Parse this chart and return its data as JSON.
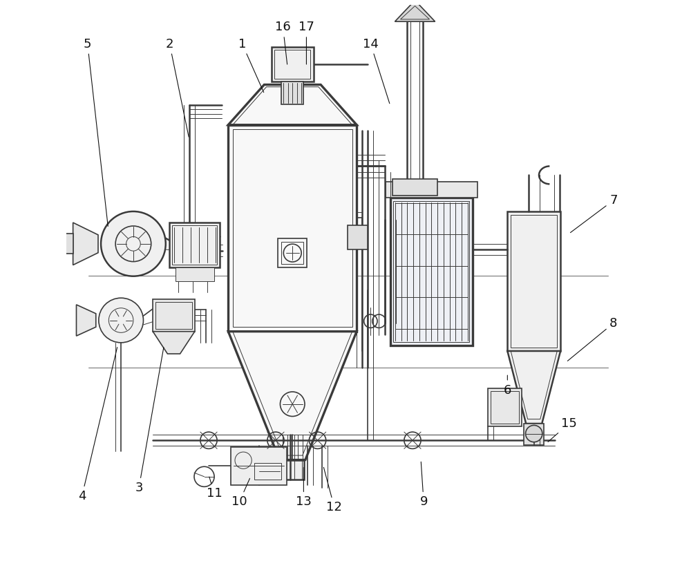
{
  "background_color": "#ffffff",
  "line_color": "#3a3a3a",
  "label_color": "#111111",
  "figsize": [
    10.0,
    8.22
  ],
  "dpi": 100,
  "label_positions": {
    "1": [
      0.315,
      0.93,
      0.355,
      0.84
    ],
    "2": [
      0.185,
      0.93,
      0.22,
      0.76
    ],
    "3": [
      0.13,
      0.135,
      0.175,
      0.39
    ],
    "4": [
      0.028,
      0.12,
      0.092,
      0.39
    ],
    "5": [
      0.038,
      0.93,
      0.075,
      0.6
    ],
    "6": [
      0.79,
      0.31,
      0.79,
      0.34
    ],
    "7": [
      0.98,
      0.65,
      0.9,
      0.59
    ],
    "8": [
      0.98,
      0.43,
      0.895,
      0.36
    ],
    "9": [
      0.64,
      0.11,
      0.635,
      0.185
    ],
    "10": [
      0.31,
      0.11,
      0.33,
      0.155
    ],
    "11": [
      0.265,
      0.125,
      0.255,
      0.158
    ],
    "12": [
      0.48,
      0.1,
      0.46,
      0.175
    ],
    "13": [
      0.425,
      0.11,
      0.425,
      0.175
    ],
    "14": [
      0.545,
      0.93,
      0.58,
      0.82
    ],
    "15": [
      0.9,
      0.25,
      0.86,
      0.215
    ],
    "16": [
      0.388,
      0.96,
      0.396,
      0.89
    ],
    "17": [
      0.43,
      0.96,
      0.43,
      0.89
    ]
  }
}
